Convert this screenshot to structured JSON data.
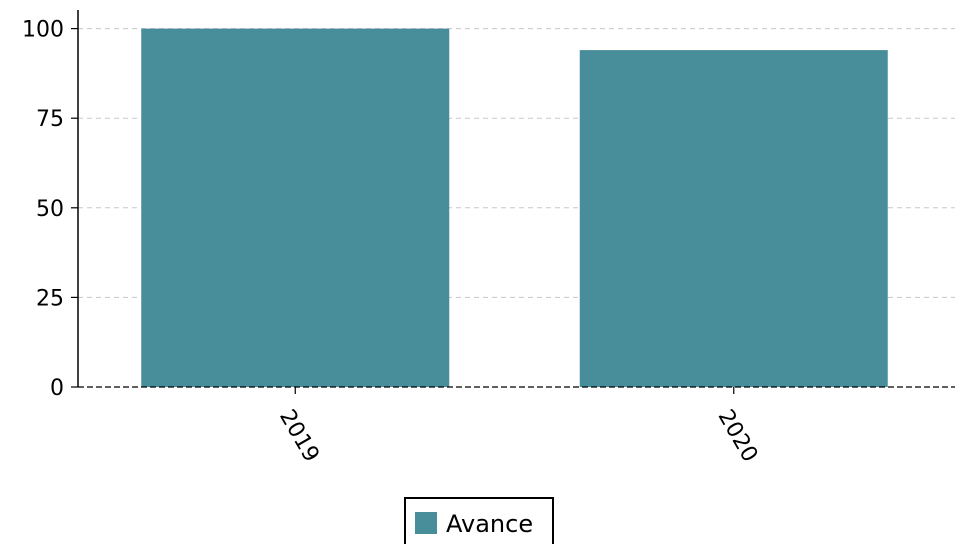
{
  "chart_data": {
    "type": "bar",
    "categories": [
      "2019",
      "2020"
    ],
    "series": [
      {
        "name": "Avance",
        "values": [
          100,
          94
        ],
        "color": "#478d9a"
      }
    ],
    "title": "",
    "xlabel": "",
    "ylabel": "",
    "ylim": [
      0,
      105
    ],
    "yticks": [
      0,
      25,
      50,
      75,
      100
    ],
    "x_tick_rotation": "diagonal, rotated clockwise",
    "grid": "horizontal dashed",
    "grid_color": "#c8c8c8",
    "legend": {
      "placement": "bottom-center",
      "entries": [
        "Avance"
      ]
    }
  }
}
